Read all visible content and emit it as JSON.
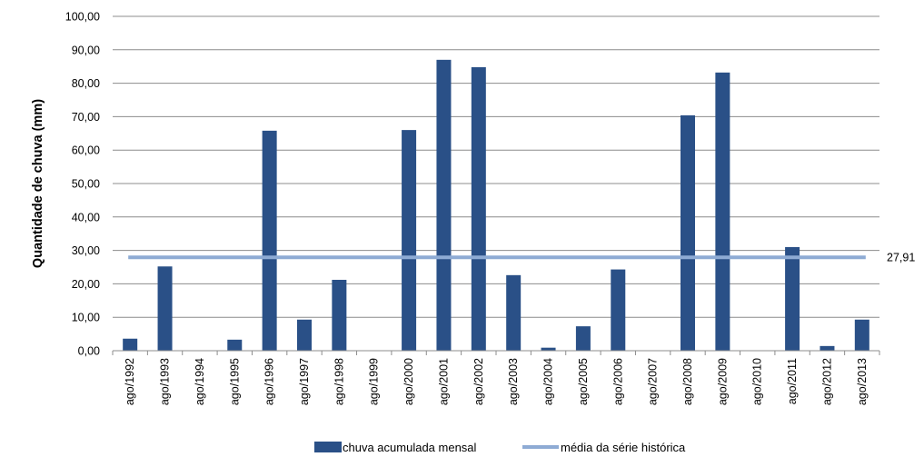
{
  "chart_data": {
    "type": "bar",
    "ylabel": "Quantidade de chuva (mm)",
    "xlabel": "",
    "ylim": [
      0,
      100
    ],
    "y_ticks": [
      "0,00",
      "10,00",
      "20,00",
      "30,00",
      "40,00",
      "50,00",
      "60,00",
      "70,00",
      "80,00",
      "90,00",
      "100,00"
    ],
    "grid": true,
    "legend_position": "bottom",
    "categories": [
      "ago/1992",
      "ago/1993",
      "ago/1994",
      "ago/1995",
      "ago/1996",
      "ago/1997",
      "ago/1998",
      "ago/1999",
      "ago/2000",
      "ago/2001",
      "ago/2002",
      "ago/2003",
      "ago/2004",
      "ago/2005",
      "ago/2006",
      "ago/2007",
      "ago/2008",
      "ago/2009",
      "ago/2010",
      "ago/2011",
      "ago/2012",
      "ago/2013"
    ],
    "series": [
      {
        "name": "chuva acumulada mensal",
        "kind": "bar",
        "color": "#2a5087",
        "values": [
          3.6,
          25.2,
          0,
          3.3,
          65.8,
          9.3,
          21.2,
          0,
          66.0,
          87.0,
          84.8,
          22.6,
          0.9,
          7.3,
          24.3,
          0,
          70.4,
          83.2,
          0,
          31.0,
          1.4,
          9.3
        ]
      },
      {
        "name": "média da série histórica",
        "kind": "line",
        "color": "#8eabd4",
        "value": 27.91,
        "label": "27,91"
      }
    ]
  }
}
